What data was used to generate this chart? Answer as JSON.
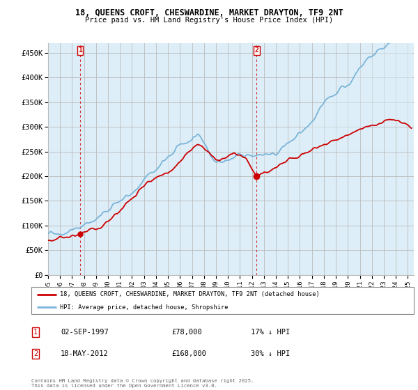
{
  "title": "18, QUEENS CROFT, CHESWARDINE, MARKET DRAYTON, TF9 2NT",
  "subtitle": "Price paid vs. HM Land Registry's House Price Index (HPI)",
  "ylim": [
    0,
    470000
  ],
  "yticks": [
    0,
    50000,
    100000,
    150000,
    200000,
    250000,
    300000,
    350000,
    400000,
    450000
  ],
  "ytick_labels": [
    "£0",
    "£50K",
    "£100K",
    "£150K",
    "£200K",
    "£250K",
    "£300K",
    "£350K",
    "£400K",
    "£450K"
  ],
  "xlim_start": 1995.0,
  "xlim_end": 2025.5,
  "hpi_color": "#7ab4d8",
  "hpi_fill_color": "#ddeef8",
  "price_color": "#cc0000",
  "sale1_year": 1997.67,
  "sale1_price": 78000,
  "sale2_year": 2012.38,
  "sale2_price": 168000,
  "legend_line1": "18, QUEENS CROFT, CHESWARDINE, MARKET DRAYTON, TF9 2NT (detached house)",
  "legend_line2": "HPI: Average price, detached house, Shropshire",
  "annotation1_label": "1",
  "annotation1_date": "02-SEP-1997",
  "annotation1_price": "£78,000",
  "annotation1_hpi": "17% ↓ HPI",
  "annotation2_label": "2",
  "annotation2_date": "18-MAY-2012",
  "annotation2_price": "£168,000",
  "annotation2_hpi": "30% ↓ HPI",
  "footer": "Contains HM Land Registry data © Crown copyright and database right 2025.\nThis data is licensed under the Open Government Licence v3.0.",
  "background_color": "#ffffff",
  "plot_bg_color": "#ddeef8",
  "grid_color": "#bbbbbb"
}
